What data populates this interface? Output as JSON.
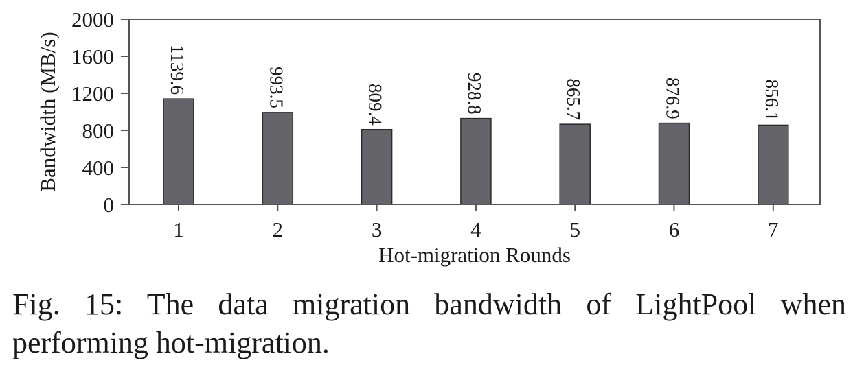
{
  "chart_data": {
    "type": "bar",
    "categories": [
      "1",
      "2",
      "3",
      "4",
      "5",
      "6",
      "7"
    ],
    "values": [
      1139.6,
      993.5,
      809.4,
      928.8,
      865.7,
      876.9,
      856.1
    ],
    "data_labels": [
      "1139.6",
      "993.5",
      "809.4",
      "928.8",
      "865.7",
      "876.9",
      "856.1"
    ],
    "xlabel": "Hot-migration Rounds",
    "ylabel": "Bandwidth (MB/s)",
    "ylim": [
      0,
      2000
    ],
    "yticks": [
      0,
      400,
      800,
      1200,
      1600,
      2000
    ],
    "ytick_labels": [
      "0",
      "400",
      "800",
      "1200",
      "1600",
      "2000"
    ],
    "grid": false,
    "bar_color": "#63656a",
    "data_label_orientation": "rotated-90-clockwise"
  },
  "caption": {
    "label": "Fig. 15:",
    "text": "The data migration bandwidth of LightPool when performing hot-migration."
  }
}
